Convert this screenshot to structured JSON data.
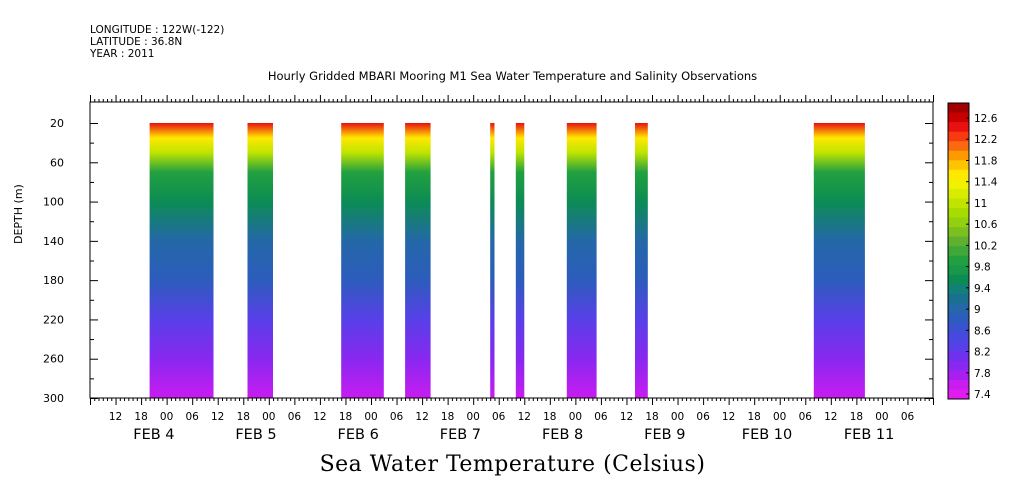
{
  "meta": {
    "longitude": "LONGITUDE : 122W(-122)",
    "latitude": "LATITUDE : 36.8N",
    "year": "YEAR : 2011"
  },
  "chart_data": {
    "type": "heatmap",
    "title": "Hourly Gridded MBARI Mooring M1 Sea Water Temperature and Salinity Observations",
    "variable_label": "Sea Water Temperature (Celsius)",
    "ylabel": "DEPTH (m)",
    "ylim": [
      300,
      10
    ],
    "yticks": [
      20,
      60,
      100,
      140,
      180,
      220,
      260,
      300
    ],
    "xlim_hours": [
      0,
      198
    ],
    "x_tick_labels": [
      "12",
      "18",
      "00",
      "06",
      "12",
      "18",
      "00",
      "06",
      "12",
      "18",
      "00",
      "06",
      "12",
      "18",
      "00",
      "06",
      "12",
      "18",
      "00",
      "06",
      "12",
      "18",
      "00",
      "06",
      "12",
      "18",
      "00",
      "06",
      "12",
      "18",
      "00",
      "06"
    ],
    "x_tick_start_hour": 6,
    "x_tick_step_hours": 6,
    "date_labels": [
      {
        "text": "FEB  4",
        "hour": 15
      },
      {
        "text": "FEB  5",
        "hour": 39
      },
      {
        "text": "FEB  6",
        "hour": 63
      },
      {
        "text": "FEB  7",
        "hour": 87
      },
      {
        "text": "FEB  8",
        "hour": 111
      },
      {
        "text": "FEB  9",
        "hour": 135
      },
      {
        "text": "FEB 10",
        "hour": 159
      },
      {
        "text": "FEB 11",
        "hour": 183
      }
    ],
    "data_segments": [
      {
        "start_hour": 14,
        "end_hour": 29
      },
      {
        "start_hour": 37,
        "end_hour": 43
      },
      {
        "start_hour": 59,
        "end_hour": 69
      },
      {
        "start_hour": 74,
        "end_hour": 80
      },
      {
        "start_hour": 94,
        "end_hour": 95
      },
      {
        "start_hour": 100,
        "end_hour": 102
      },
      {
        "start_hour": 112,
        "end_hour": 119
      },
      {
        "start_hour": 128,
        "end_hour": 131
      },
      {
        "start_hour": 170,
        "end_hour": 182
      }
    ],
    "temperature_profile": [
      {
        "depth": 20,
        "value": 12.4
      },
      {
        "depth": 35,
        "value": 11.5
      },
      {
        "depth": 50,
        "value": 10.9
      },
      {
        "depth": 70,
        "value": 10.0
      },
      {
        "depth": 100,
        "value": 9.5
      },
      {
        "depth": 140,
        "value": 9.1
      },
      {
        "depth": 180,
        "value": 8.8
      },
      {
        "depth": 220,
        "value": 8.3
      },
      {
        "depth": 260,
        "value": 8.0
      },
      {
        "depth": 300,
        "value": 7.7
      }
    ],
    "colorbar": {
      "labels": [
        "12.6",
        "12.2",
        "11.8",
        "11.4",
        "11",
        "10.6",
        "10.2",
        "9.8",
        "9.4",
        "9",
        "8.6",
        "8.2",
        "7.8",
        "7.4"
      ],
      "colors": [
        "#a00000",
        "#c80000",
        "#e81010",
        "#f83a10",
        "#fb6a10",
        "#fd9a00",
        "#ffc400",
        "#ffe800",
        "#f0f000",
        "#d8ec00",
        "#c0e400",
        "#a8dc00",
        "#92d010",
        "#7cc020",
        "#60b030",
        "#3ea838",
        "#22a040",
        "#189848",
        "#0c8c54",
        "#128078",
        "#1a7090",
        "#2468a8",
        "#2c5cbc",
        "#3852d0",
        "#4848e0",
        "#5840e8",
        "#7030f0",
        "#8828f0",
        "#a820f0",
        "#c81cf0",
        "#e01cf0"
      ]
    }
  }
}
